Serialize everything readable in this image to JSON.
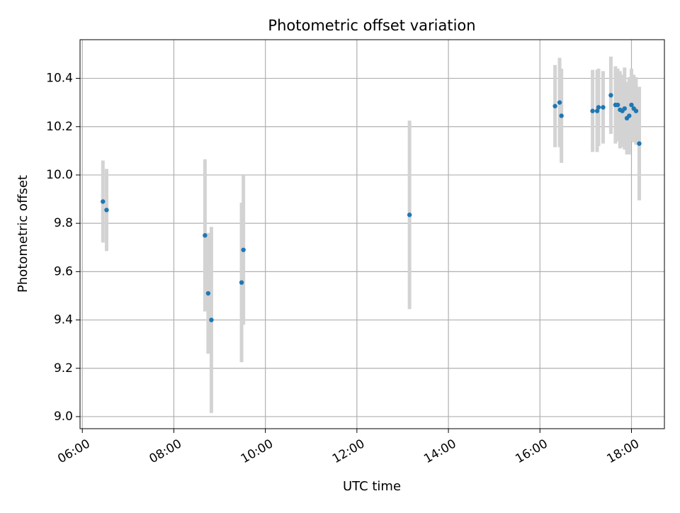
{
  "chart_data": {
    "type": "scatter",
    "title": "Photometric offset variation",
    "xlabel": "UTC time",
    "ylabel": "Photometric offset",
    "x_tick_labels": [
      "06:00",
      "08:00",
      "10:00",
      "12:00",
      "14:00",
      "16:00",
      "18:00"
    ],
    "x_tick_hours": [
      6,
      8,
      10,
      12,
      14,
      16,
      18
    ],
    "y_tick_labels": [
      "9.0",
      "9.2",
      "9.4",
      "9.6",
      "9.8",
      "10.0",
      "10.2",
      "10.4"
    ],
    "y_tick_values": [
      9.0,
      9.2,
      9.4,
      9.6,
      9.8,
      10.0,
      10.2,
      10.4
    ],
    "xlim_hours": [
      5.95,
      18.72
    ],
    "ylim": [
      8.95,
      10.56
    ],
    "grid": true,
    "colors": {
      "point": "#1f77b4",
      "errorbar": "#d3d3d3",
      "grid": "#b0b0b0",
      "axis": "#000000"
    },
    "x_unit": "UTC hours (decimal)",
    "points": [
      {
        "x": 6.45,
        "y": 9.89,
        "err": 0.17
      },
      {
        "x": 6.53,
        "y": 9.855,
        "err": 0.17
      },
      {
        "x": 8.68,
        "y": 9.75,
        "err": 0.315
      },
      {
        "x": 8.75,
        "y": 9.51,
        "err": 0.25
      },
      {
        "x": 8.82,
        "y": 9.4,
        "err": 0.385
      },
      {
        "x": 9.48,
        "y": 9.555,
        "err": 0.33
      },
      {
        "x": 9.52,
        "y": 9.69,
        "err": 0.31
      },
      {
        "x": 13.15,
        "y": 9.835,
        "err": 0.39
      },
      {
        "x": 16.33,
        "y": 10.285,
        "err": 0.17
      },
      {
        "x": 16.43,
        "y": 10.3,
        "err": 0.185
      },
      {
        "x": 16.47,
        "y": 10.245,
        "err": 0.195
      },
      {
        "x": 17.15,
        "y": 10.265,
        "err": 0.17
      },
      {
        "x": 17.25,
        "y": 10.265,
        "err": 0.17
      },
      {
        "x": 17.28,
        "y": 10.28,
        "err": 0.16
      },
      {
        "x": 17.38,
        "y": 10.28,
        "err": 0.15
      },
      {
        "x": 17.55,
        "y": 10.33,
        "err": 0.16
      },
      {
        "x": 17.65,
        "y": 10.29,
        "err": 0.16
      },
      {
        "x": 17.7,
        "y": 10.29,
        "err": 0.15
      },
      {
        "x": 17.75,
        "y": 10.27,
        "err": 0.16
      },
      {
        "x": 17.8,
        "y": 10.265,
        "err": 0.15
      },
      {
        "x": 17.85,
        "y": 10.275,
        "err": 0.17
      },
      {
        "x": 17.9,
        "y": 10.235,
        "err": 0.15
      },
      {
        "x": 17.95,
        "y": 10.245,
        "err": 0.16
      },
      {
        "x": 18.0,
        "y": 10.29,
        "err": 0.15
      },
      {
        "x": 18.05,
        "y": 10.275,
        "err": 0.14
      },
      {
        "x": 18.1,
        "y": 10.265,
        "err": 0.14
      },
      {
        "x": 18.17,
        "y": 10.13,
        "err": 0.235
      }
    ]
  }
}
